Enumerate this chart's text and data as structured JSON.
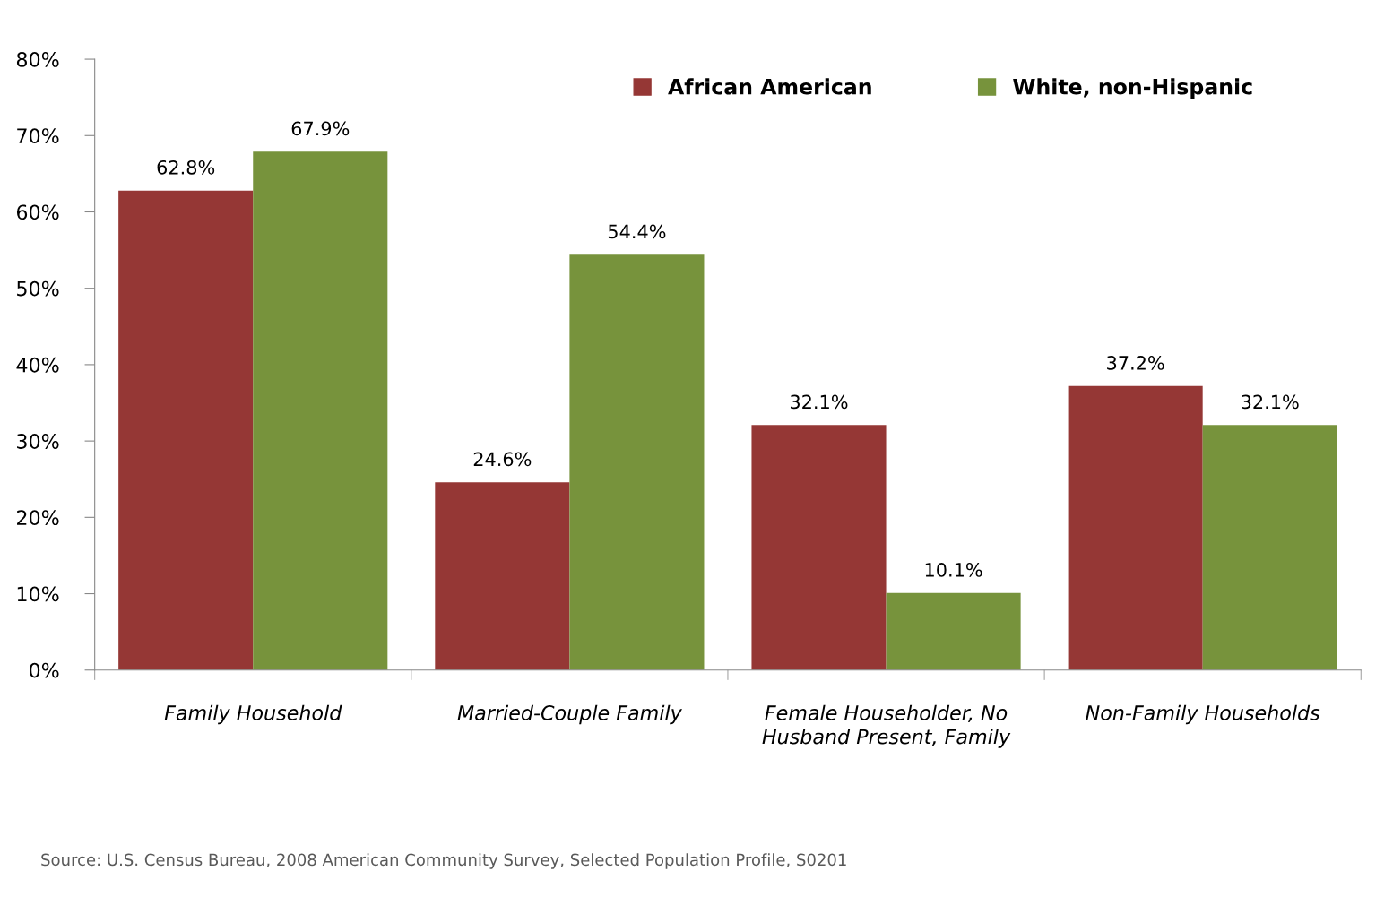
{
  "chart_data": {
    "type": "bar",
    "categories": [
      "Family Household",
      "Married-Couple Family",
      "Female Householder, No\nHusband Present, Family",
      "Non-Family Households"
    ],
    "series": [
      {
        "name": "African American",
        "color": "#953735",
        "values": [
          62.8,
          24.6,
          32.1,
          37.2
        ],
        "value_labels": [
          "62.8%",
          "24.6%",
          "32.1%",
          "37.2%"
        ]
      },
      {
        "name": "White, non-Hispanic",
        "color": "#77933c",
        "values": [
          67.9,
          54.4,
          10.1,
          32.1
        ],
        "value_labels": [
          "67.9%",
          "54.4%",
          "10.1%",
          "32.1%"
        ]
      }
    ],
    "ylim": [
      0,
      80
    ],
    "yticks": [
      {
        "value": 0,
        "label": "0%"
      },
      {
        "value": 10,
        "label": "10%"
      },
      {
        "value": 20,
        "label": "20%"
      },
      {
        "value": 30,
        "label": "30%"
      },
      {
        "value": 40,
        "label": "40%"
      },
      {
        "value": 50,
        "label": "50%"
      },
      {
        "value": 60,
        "label": "60%"
      },
      {
        "value": 70,
        "label": "70%"
      },
      {
        "value": 80,
        "label": "80%"
      }
    ],
    "grid": false,
    "legend": "top right",
    "annotations": [
      "Source: U.S. Census Bureau, 2008 American Community Survey, Selected Population Profile, S0201"
    ]
  }
}
